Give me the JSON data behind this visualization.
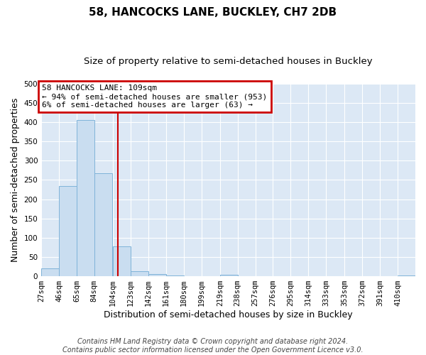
{
  "title": "58, HANCOCKS LANE, BUCKLEY, CH7 2DB",
  "subtitle": "Size of property relative to semi-detached houses in Buckley",
  "xlabel": "Distribution of semi-detached houses by size in Buckley",
  "ylabel": "Number of semi-detached properties",
  "bin_labels": [
    "27sqm",
    "46sqm",
    "65sqm",
    "84sqm",
    "104sqm",
    "123sqm",
    "142sqm",
    "161sqm",
    "180sqm",
    "199sqm",
    "219sqm",
    "238sqm",
    "257sqm",
    "276sqm",
    "295sqm",
    "314sqm",
    "333sqm",
    "353sqm",
    "372sqm",
    "391sqm",
    "410sqm"
  ],
  "bin_edges": [
    27,
    46,
    65,
    84,
    104,
    123,
    142,
    161,
    180,
    199,
    219,
    238,
    257,
    276,
    295,
    314,
    333,
    353,
    372,
    391,
    410
  ],
  "bar_heights": [
    20,
    235,
    405,
    268,
    78,
    13,
    6,
    2,
    0,
    0,
    3,
    0,
    0,
    0,
    0,
    0,
    0,
    0,
    0,
    0,
    2
  ],
  "bar_color": "#c9ddf0",
  "bar_edgecolor": "#7fb3d9",
  "vline_x": 109,
  "vline_color": "#cc0000",
  "ylim": [
    0,
    500
  ],
  "yticks": [
    0,
    50,
    100,
    150,
    200,
    250,
    300,
    350,
    400,
    450,
    500
  ],
  "annotation_title": "58 HANCOCKS LANE: 109sqm",
  "annotation_line1": "← 94% of semi-detached houses are smaller (953)",
  "annotation_line2": "6% of semi-detached houses are larger (63) →",
  "annotation_box_color": "#cc0000",
  "footer_line1": "Contains HM Land Registry data © Crown copyright and database right 2024.",
  "footer_line2": "Contains public sector information licensed under the Open Government Licence v3.0.",
  "fig_background": "#ffffff",
  "plot_background": "#dce8f5",
  "grid_color": "#ffffff",
  "title_fontsize": 11,
  "subtitle_fontsize": 9.5,
  "axis_label_fontsize": 9,
  "tick_fontsize": 7.5,
  "annotation_fontsize": 8,
  "footer_fontsize": 7
}
